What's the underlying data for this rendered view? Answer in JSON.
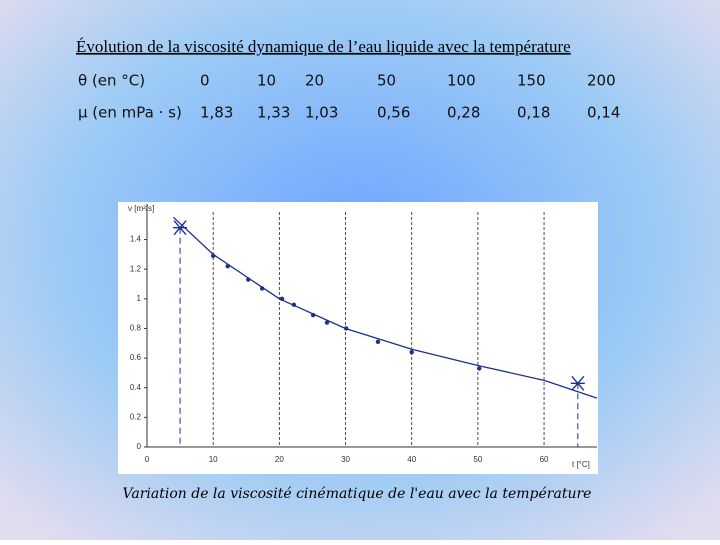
{
  "title": "Évolution de la viscosité dynamique de l’eau liquide avec la température",
  "table": {
    "rows": [
      [
        "θ (en °C)",
        "0",
        "10",
        "20",
        "50",
        "100",
        "150",
        "200"
      ],
      [
        "µ (en mPa · s)",
        "1,83",
        "1,33",
        "1,03",
        "0,56",
        "0,28",
        "0,18",
        "0,14"
      ]
    ]
  },
  "chart_data": {
    "type": "scatter",
    "y_label": "ν [m²/s]",
    "x_label": "t [°C]",
    "xlim": [
      0,
      68
    ],
    "ylim": [
      0,
      1.64
    ],
    "xticks": [
      0,
      10,
      20,
      30,
      40,
      50,
      60
    ],
    "yticks": [
      0,
      0.2,
      0.4,
      0.6,
      0.8,
      1,
      1.2,
      1.4
    ],
    "grid": "x",
    "series": [
      {
        "color": "#1f2f8f",
        "marker": "dot",
        "x": [
          10,
          12.2,
          15.3,
          17.4,
          20.4,
          22.2,
          25.1,
          27.2,
          30.1,
          34.9,
          40,
          50.2
        ],
        "values": [
          1.29,
          1.22,
          1.13,
          1.07,
          1.0,
          0.96,
          0.89,
          0.84,
          0.8,
          0.71,
          0.64,
          0.53
        ]
      },
      {
        "color": "#1f2f8f",
        "marker": "x",
        "x": [
          5,
          65.1
        ],
        "values": [
          1.48,
          0.43
        ]
      },
      {
        "color": "#1f2f8f",
        "marker": "line",
        "x": [
          4,
          10,
          20,
          30,
          40,
          50,
          60,
          68
        ],
        "values": [
          1.55,
          1.3,
          1.0,
          0.8,
          0.66,
          0.55,
          0.45,
          0.33
        ]
      }
    ]
  },
  "caption": "Variation de la viscosité cinématique de l'eau avec la température"
}
